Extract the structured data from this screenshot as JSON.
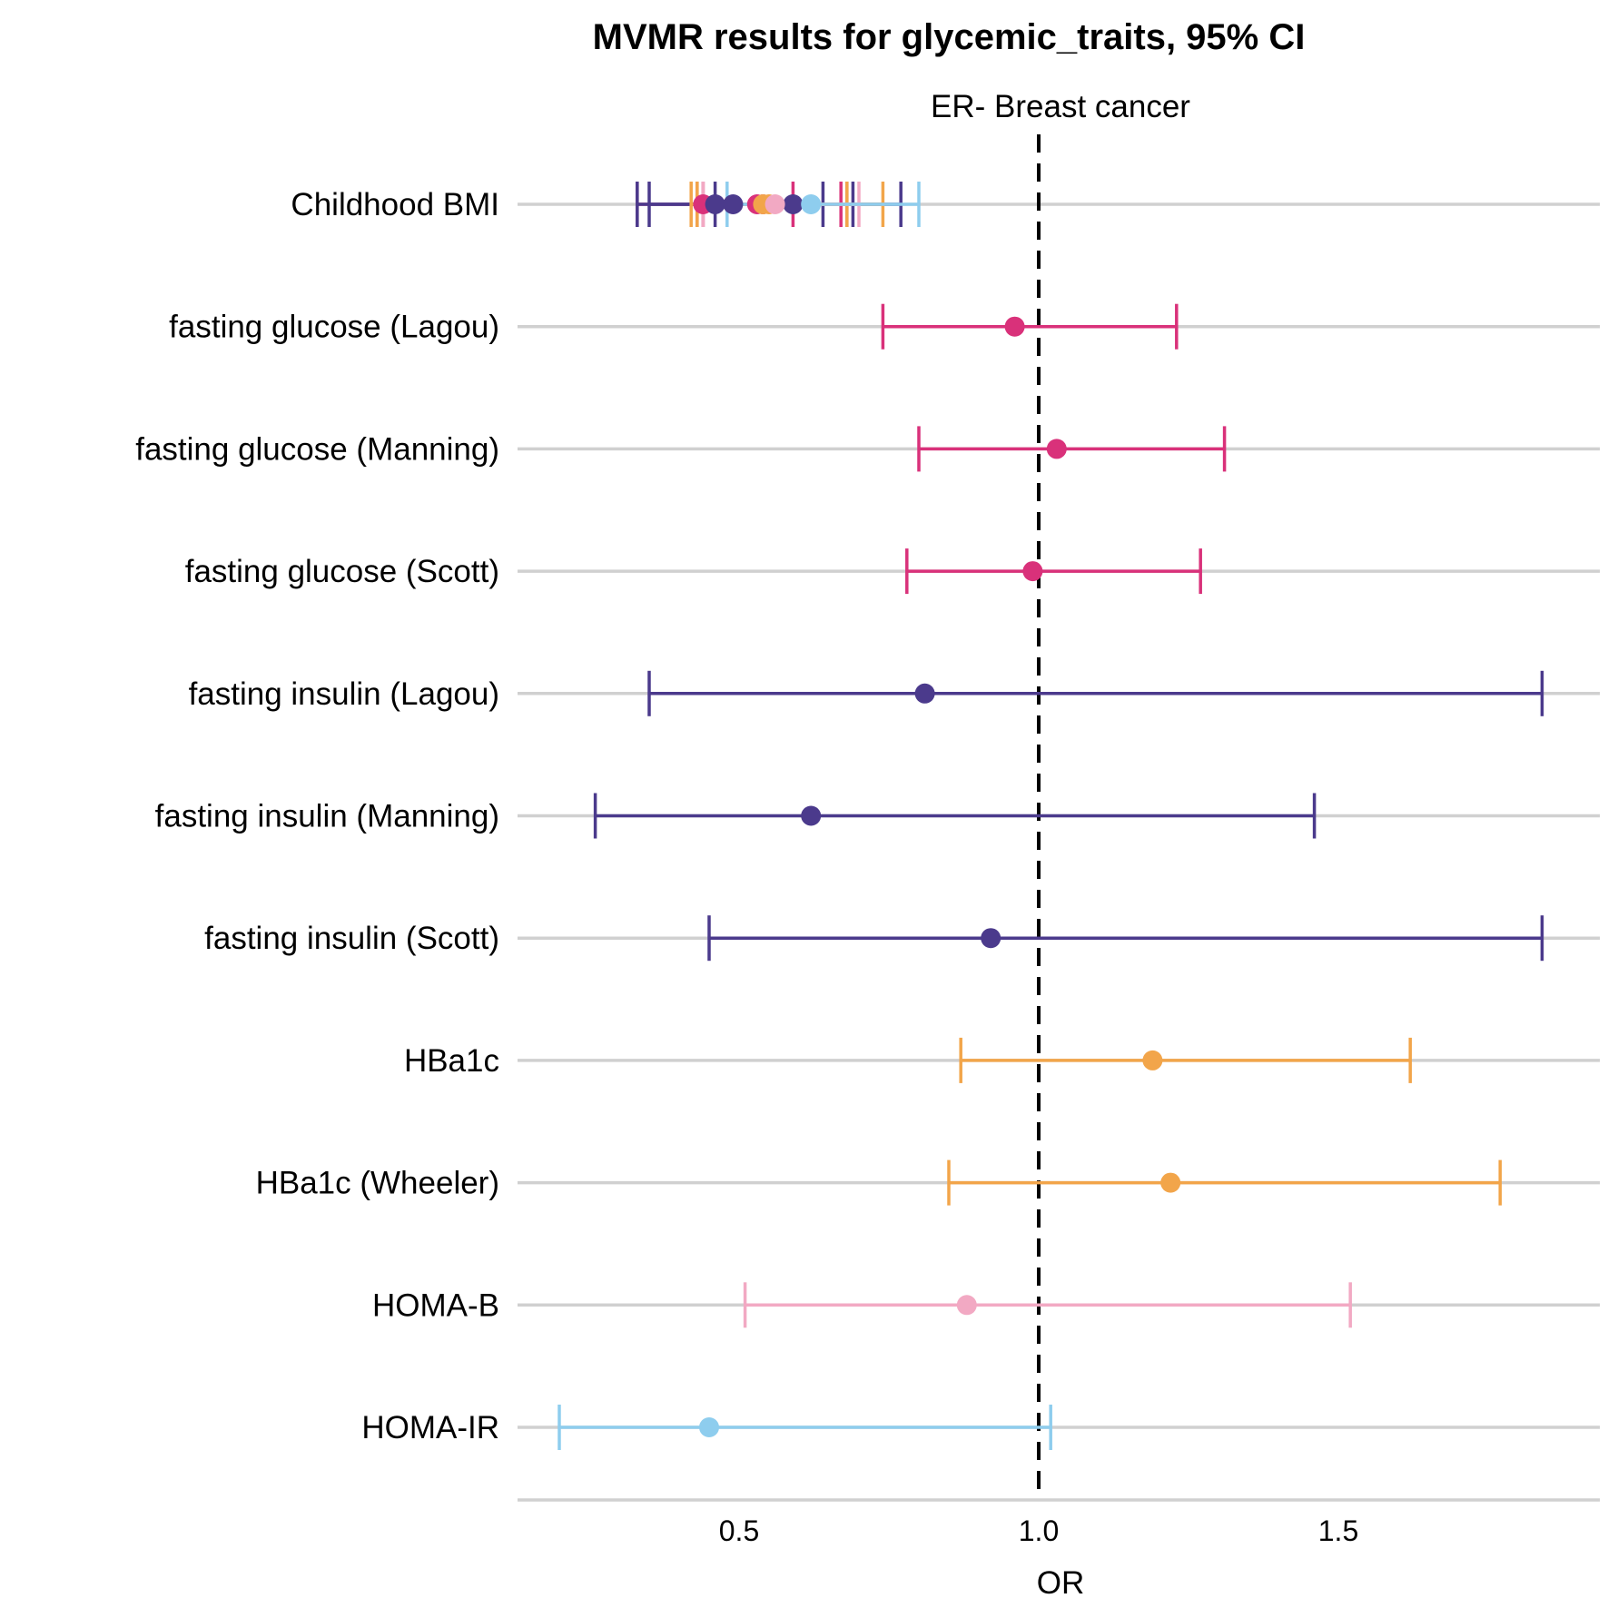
{
  "chart_data": {
    "type": "forest",
    "title": "MVMR results for glycemic_traits, 95% CI",
    "facet_label": "ER- Breast cancer",
    "xlabel": "OR",
    "xlim": [
      0.14,
      1.97
    ],
    "xticks": [
      0.5,
      1.0,
      1.5
    ],
    "xtick_labels": [
      "0.5",
      "1.0",
      "1.5"
    ],
    "reference_line": 1.0,
    "grid": "horizontal",
    "colors": {
      "fasting_glucose": "#d9317a",
      "fasting_insulin": "#4b3a8c",
      "hba1c": "#f2a54a",
      "homa_b": "#f2a9c3",
      "homa_ir": "#8ecdee",
      "gridline": "#d0d0d0",
      "reference": "#000000"
    },
    "categories": [
      "Childhood BMI",
      "fasting glucose (Lagou)",
      "fasting glucose (Manning)",
      "fasting glucose (Scott)",
      "fasting insulin (Lagou)",
      "fasting insulin (Manning)",
      "fasting insulin (Scott)",
      "HBa1c",
      "HBa1c (Wheeler)",
      "HOMA-B",
      "HOMA-IR"
    ],
    "estimates": [
      {
        "category": "Childhood BMI",
        "color": "fasting_glucose",
        "or": 0.44,
        "lower": 0.33,
        "upper": 0.59
      },
      {
        "category": "Childhood BMI",
        "color": "fasting_insulin",
        "or": 0.46,
        "lower": 0.33,
        "upper": 0.64
      },
      {
        "category": "Childhood BMI",
        "color": "fasting_insulin",
        "or": 0.49,
        "lower": 0.35,
        "upper": 0.69
      },
      {
        "category": "Childhood BMI",
        "color": "fasting_glucose",
        "or": 0.53,
        "lower": 0.43,
        "upper": 0.68
      },
      {
        "category": "Childhood BMI",
        "color": "fasting_glucose",
        "or": 0.54,
        "lower": 0.44,
        "upper": 0.67
      },
      {
        "category": "Childhood BMI",
        "color": "fasting_insulin",
        "or": 0.59,
        "lower": 0.46,
        "upper": 0.77
      },
      {
        "category": "Childhood BMI",
        "color": "hba1c",
        "or": 0.55,
        "lower": 0.42,
        "upper": 0.74
      },
      {
        "category": "Childhood BMI",
        "color": "hba1c",
        "or": 0.54,
        "lower": 0.43,
        "upper": 0.68
      },
      {
        "category": "Childhood BMI",
        "color": "homa_b",
        "or": 0.56,
        "lower": 0.44,
        "upper": 0.7
      },
      {
        "category": "Childhood BMI",
        "color": "homa_ir",
        "or": 0.62,
        "lower": 0.48,
        "upper": 0.8
      },
      {
        "category": "fasting glucose (Lagou)",
        "color": "fasting_glucose",
        "or": 0.96,
        "lower": 0.74,
        "upper": 1.23
      },
      {
        "category": "fasting glucose (Manning)",
        "color": "fasting_glucose",
        "or": 1.03,
        "lower": 0.8,
        "upper": 1.31
      },
      {
        "category": "fasting glucose (Scott)",
        "color": "fasting_glucose",
        "or": 0.99,
        "lower": 0.78,
        "upper": 1.27
      },
      {
        "category": "fasting insulin (Lagou)",
        "color": "fasting_insulin",
        "or": 0.81,
        "lower": 0.35,
        "upper": 1.84
      },
      {
        "category": "fasting insulin (Manning)",
        "color": "fasting_insulin",
        "or": 0.62,
        "lower": 0.26,
        "upper": 1.46
      },
      {
        "category": "fasting insulin (Scott)",
        "color": "fasting_insulin",
        "or": 0.92,
        "lower": 0.45,
        "upper": 1.84
      },
      {
        "category": "HBa1c",
        "color": "hba1c",
        "or": 1.19,
        "lower": 0.87,
        "upper": 1.62
      },
      {
        "category": "HBa1c (Wheeler)",
        "color": "hba1c",
        "or": 1.22,
        "lower": 0.85,
        "upper": 1.77
      },
      {
        "category": "HOMA-B",
        "color": "homa_b",
        "or": 0.88,
        "lower": 0.51,
        "upper": 1.52
      },
      {
        "category": "HOMA-IR",
        "color": "homa_ir",
        "or": 0.45,
        "lower": 0.2,
        "upper": 1.02
      }
    ]
  }
}
